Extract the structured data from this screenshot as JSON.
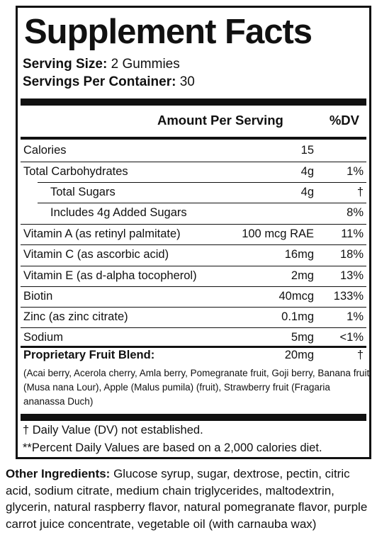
{
  "title": "Supplement Facts",
  "serving_size": {
    "label": "Serving Size:",
    "value": "2 Gummies"
  },
  "servings_per_container": {
    "label": "Servings Per Container:",
    "value": "30"
  },
  "header": {
    "amount": "Amount Per Serving",
    "dv": "%DV"
  },
  "rows": [
    {
      "label": "Calories",
      "amount": "15",
      "dv": ""
    },
    {
      "label": "Total Carbohydrates",
      "amount": "4g",
      "dv": "1%"
    },
    {
      "label": "Total Sugars",
      "amount": "4g",
      "dv": "†"
    },
    {
      "label": "Includes 4g Added Sugars",
      "amount": "",
      "dv": "8%"
    },
    {
      "label": "Vitamin A (as retinyl palmitate)",
      "amount": "100 mcg RAE",
      "dv": "11%"
    },
    {
      "label": "Vitamin C (as ascorbic acid)",
      "amount": "16mg",
      "dv": "18%"
    },
    {
      "label": "Vitamin E (as d-alpha tocopherol)",
      "amount": "2mg",
      "dv": "13%"
    },
    {
      "label": "Biotin",
      "amount": "40mcg",
      "dv": "133%"
    },
    {
      "label": "Zinc (as zinc citrate)",
      "amount": "0.1mg",
      "dv": "1%"
    },
    {
      "label": "Sodium",
      "amount": "5mg",
      "dv": "<1%"
    }
  ],
  "proprietary": {
    "label": "Proprietary Fruit Blend:",
    "amount": "20mg",
    "dv": "†",
    "description": "(Acai berry, Acerola cherry, Amla berry, Pomegranate fruit, Goji berry, Banana fruit (Musa nana Lour), Apple (Malus pumila) (fruit), Strawberry fruit (Fragaria ananassa Duch)"
  },
  "footnotes": [
    "† Daily Value (DV) not established.",
    "**Percent Daily Values are based on a 2,000 calories diet."
  ],
  "other_ingredients": {
    "label": "Other Ingredients:",
    "text": " Glucose syrup, sugar, dextrose, pectin, citric acid, sodium citrate, medium chain triglycerides, maltodextrin, glycerin, natural raspberry flavor, natural pomegranate flavor, purple carrot juice concentrate, vegetable oil (with carnauba wax)"
  }
}
